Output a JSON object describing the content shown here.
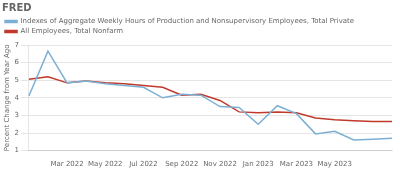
{
  "chart_data": {
    "type": "line",
    "title": "FRED",
    "ylabel": "Percent Change from Year Ago",
    "categories": [
      null,
      null,
      "Mar 2022",
      null,
      "May 2022",
      null,
      "Jul 2022",
      null,
      "Sep 2022",
      null,
      "Nov 2022",
      null,
      "Jan 2023",
      null,
      "Mar 2023",
      null,
      "May 2023",
      null,
      null,
      null
    ],
    "series": [
      {
        "name": "Indexes of Aggregate Weekly Hours of Production and Nonsupervisory Employees, Total Private",
        "color": "#7bafd4",
        "values": [
          4.1,
          6.65,
          4.85,
          4.95,
          4.8,
          4.7,
          4.6,
          4.0,
          4.2,
          4.15,
          3.5,
          3.45,
          2.5,
          3.55,
          3.1,
          1.95,
          2.1,
          1.6,
          1.65,
          1.7
        ]
      },
      {
        "name": "All Employees, Total Nonfarm",
        "color": "#c0392b",
        "values": [
          5.05,
          5.2,
          4.85,
          4.95,
          4.85,
          4.8,
          4.7,
          4.6,
          4.15,
          4.2,
          3.85,
          3.2,
          3.15,
          3.2,
          3.15,
          2.85,
          2.75,
          2.7,
          2.65,
          2.65
        ]
      }
    ],
    "ylim": [
      1,
      7
    ],
    "yticks": [
      1,
      2,
      3,
      4,
      5,
      6,
      7
    ],
    "grid": true,
    "legend": "top"
  }
}
